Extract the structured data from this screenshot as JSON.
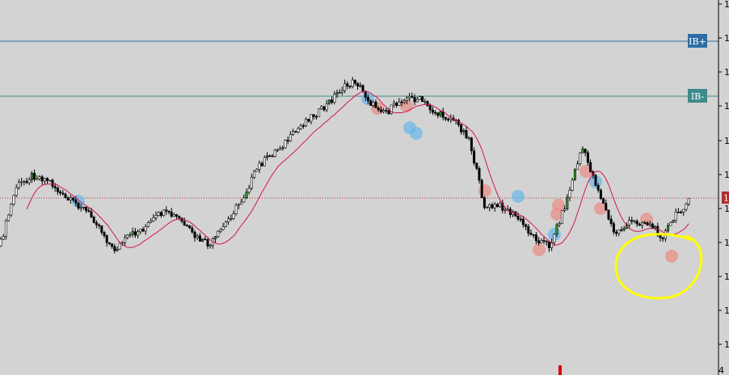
{
  "chart_data": {
    "type": "candlestick",
    "title": "",
    "xlabel": "",
    "ylabel": "",
    "y_tick_labels": [
      "1",
      "1",
      "1",
      "1",
      "1",
      "1",
      "1",
      "1",
      "1",
      "1",
      "1"
    ],
    "x_bottom_label": "4",
    "levels": [
      {
        "label": "IB+",
        "color": "#2e6da4"
      },
      {
        "label": "IB-",
        "color": "#3f8a8a"
      }
    ],
    "current_price_label": "1",
    "current_price_color": "#b03030",
    "moving_average_color": "#d4145a",
    "candle_color": "#000000",
    "bull_highlight_color": "#2e9e2e",
    "marker_colors": {
      "red": "#e8908a",
      "blue": "#6fb8e8"
    },
    "annotation": {
      "shape": "ellipse",
      "color": "#ffff00"
    },
    "marker_tick_color": "#dd0000",
    "series": [
      {
        "name": "",
        "note": "close path sampled from the plot",
        "x": [
          0,
          20,
          40,
          60,
          80,
          100,
          120,
          140,
          160,
          180,
          200,
          220,
          240,
          260,
          280,
          300,
          320,
          340,
          360,
          380,
          400,
          420,
          440,
          460,
          480,
          500,
          520,
          540,
          560,
          580,
          600,
          620,
          640,
          660,
          680,
          700,
          720,
          740,
          760,
          780,
          800,
          820,
          840,
          860
        ],
        "close": [
          0.3,
          0.55,
          0.6,
          0.58,
          0.5,
          0.47,
          0.4,
          0.28,
          0.34,
          0.38,
          0.44,
          0.42,
          0.34,
          0.3,
          0.4,
          0.5,
          0.64,
          0.7,
          0.76,
          0.84,
          0.88,
          0.96,
          1.0,
          0.9,
          0.87,
          0.93,
          0.92,
          0.86,
          0.84,
          0.76,
          0.46,
          0.47,
          0.42,
          0.34,
          0.3,
          0.48,
          0.72,
          0.54,
          0.35,
          0.4,
          0.4,
          0.34,
          0.45,
          0.51
        ]
      }
    ]
  }
}
